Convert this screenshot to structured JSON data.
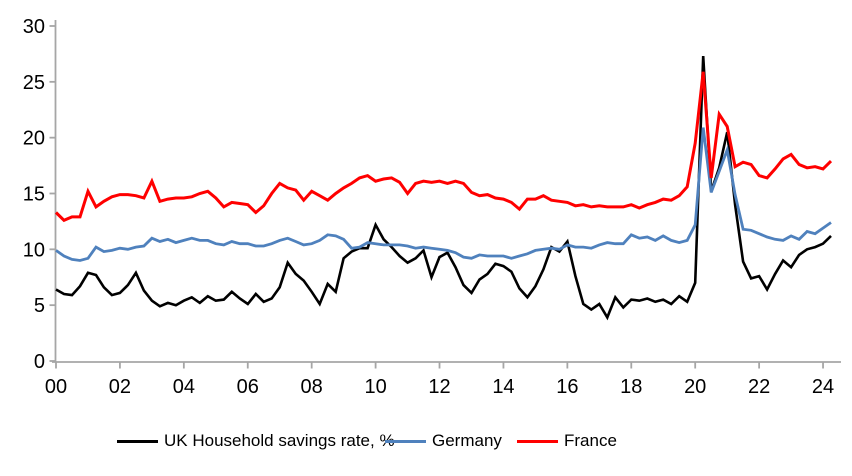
{
  "chart_data": {
    "type": "line",
    "title": "",
    "xlabel": "",
    "ylabel": "",
    "x_start_year": 2000,
    "frequency": "quarterly",
    "x_tick_labels": [
      "00",
      "02",
      "04",
      "06",
      "08",
      "10",
      "12",
      "14",
      "16",
      "18",
      "20",
      "22",
      "24"
    ],
    "y_ticks": [
      0,
      5,
      10,
      15,
      20,
      25,
      30
    ],
    "ylim": [
      0,
      30
    ],
    "grid": false,
    "legend_position": "bottom",
    "axis_color": "#a6a6a6",
    "series": [
      {
        "name": "UK Household savings rate, %",
        "color": "#000000",
        "values": [
          6.4,
          6.0,
          5.9,
          6.7,
          7.9,
          7.7,
          6.6,
          5.9,
          6.1,
          6.8,
          7.9,
          6.3,
          5.4,
          4.9,
          5.2,
          5.0,
          5.4,
          5.7,
          5.2,
          5.8,
          5.4,
          5.5,
          6.2,
          5.6,
          5.1,
          6.0,
          5.3,
          5.6,
          6.6,
          8.8,
          7.8,
          7.2,
          6.2,
          5.1,
          6.9,
          6.2,
          9.2,
          9.8,
          10.1,
          10.1,
          12.2,
          10.9,
          10.2,
          9.4,
          8.8,
          9.2,
          9.9,
          7.5,
          9.3,
          9.7,
          8.4,
          6.8,
          6.1,
          7.3,
          7.8,
          8.7,
          8.5,
          8.0,
          6.5,
          5.7,
          6.7,
          8.2,
          10.2,
          9.8,
          10.7,
          7.6,
          5.1,
          4.6,
          5.1,
          3.9,
          5.7,
          4.8,
          5.5,
          5.4,
          5.6,
          5.3,
          5.5,
          5.1,
          5.8,
          5.3,
          7.0,
          27.3,
          15.2,
          17.3,
          20.5,
          14.0,
          8.9,
          7.4,
          7.6,
          6.4,
          7.8,
          9.0,
          8.4,
          9.5,
          10.0,
          10.2,
          10.5,
          11.2
        ]
      },
      {
        "name": "Germany",
        "color": "#4f81bd",
        "values": [
          9.9,
          9.4,
          9.1,
          9.0,
          9.2,
          10.2,
          9.8,
          9.9,
          10.1,
          10.0,
          10.2,
          10.3,
          11.0,
          10.7,
          10.9,
          10.6,
          10.8,
          11.0,
          10.8,
          10.8,
          10.5,
          10.4,
          10.7,
          10.5,
          10.5,
          10.3,
          10.3,
          10.5,
          10.8,
          11.0,
          10.7,
          10.4,
          10.5,
          10.8,
          11.3,
          11.2,
          10.9,
          10.1,
          10.2,
          10.6,
          10.5,
          10.4,
          10.4,
          10.4,
          10.3,
          10.1,
          10.2,
          10.1,
          10.0,
          9.9,
          9.7,
          9.3,
          9.2,
          9.5,
          9.4,
          9.4,
          9.4,
          9.2,
          9.4,
          9.6,
          9.9,
          10.0,
          10.1,
          10.0,
          10.4,
          10.2,
          10.2,
          10.1,
          10.4,
          10.6,
          10.5,
          10.5,
          11.3,
          11.0,
          11.1,
          10.8,
          11.2,
          10.8,
          10.6,
          10.8,
          12.2,
          20.9,
          15.1,
          17.0,
          18.9,
          14.9,
          11.8,
          11.7,
          11.4,
          11.1,
          10.9,
          10.8,
          11.2,
          10.9,
          11.6,
          11.4,
          11.9,
          12.4
        ]
      },
      {
        "name": "France",
        "color": "#ff0000",
        "values": [
          13.3,
          12.6,
          12.9,
          12.9,
          15.2,
          13.8,
          14.3,
          14.7,
          14.9,
          14.9,
          14.8,
          14.6,
          16.1,
          14.3,
          14.5,
          14.6,
          14.6,
          14.7,
          15.0,
          15.2,
          14.6,
          13.8,
          14.2,
          14.1,
          14.0,
          13.3,
          13.9,
          15.0,
          15.9,
          15.5,
          15.3,
          14.4,
          15.2,
          14.8,
          14.4,
          15.0,
          15.5,
          15.9,
          16.4,
          16.6,
          16.1,
          16.3,
          16.4,
          16.0,
          15.0,
          15.9,
          16.1,
          16.0,
          16.1,
          15.9,
          16.1,
          15.9,
          15.1,
          14.8,
          14.9,
          14.6,
          14.5,
          14.2,
          13.6,
          14.5,
          14.5,
          14.8,
          14.4,
          14.3,
          14.2,
          13.9,
          14.0,
          13.8,
          13.9,
          13.8,
          13.8,
          13.8,
          14.0,
          13.7,
          14.0,
          14.2,
          14.5,
          14.4,
          14.8,
          15.6,
          19.5,
          25.9,
          16.4,
          22.1,
          21.0,
          17.4,
          17.8,
          17.6,
          16.6,
          16.4,
          17.2,
          18.1,
          18.5,
          17.6,
          17.3,
          17.4,
          17.2,
          17.9
        ]
      }
    ]
  }
}
